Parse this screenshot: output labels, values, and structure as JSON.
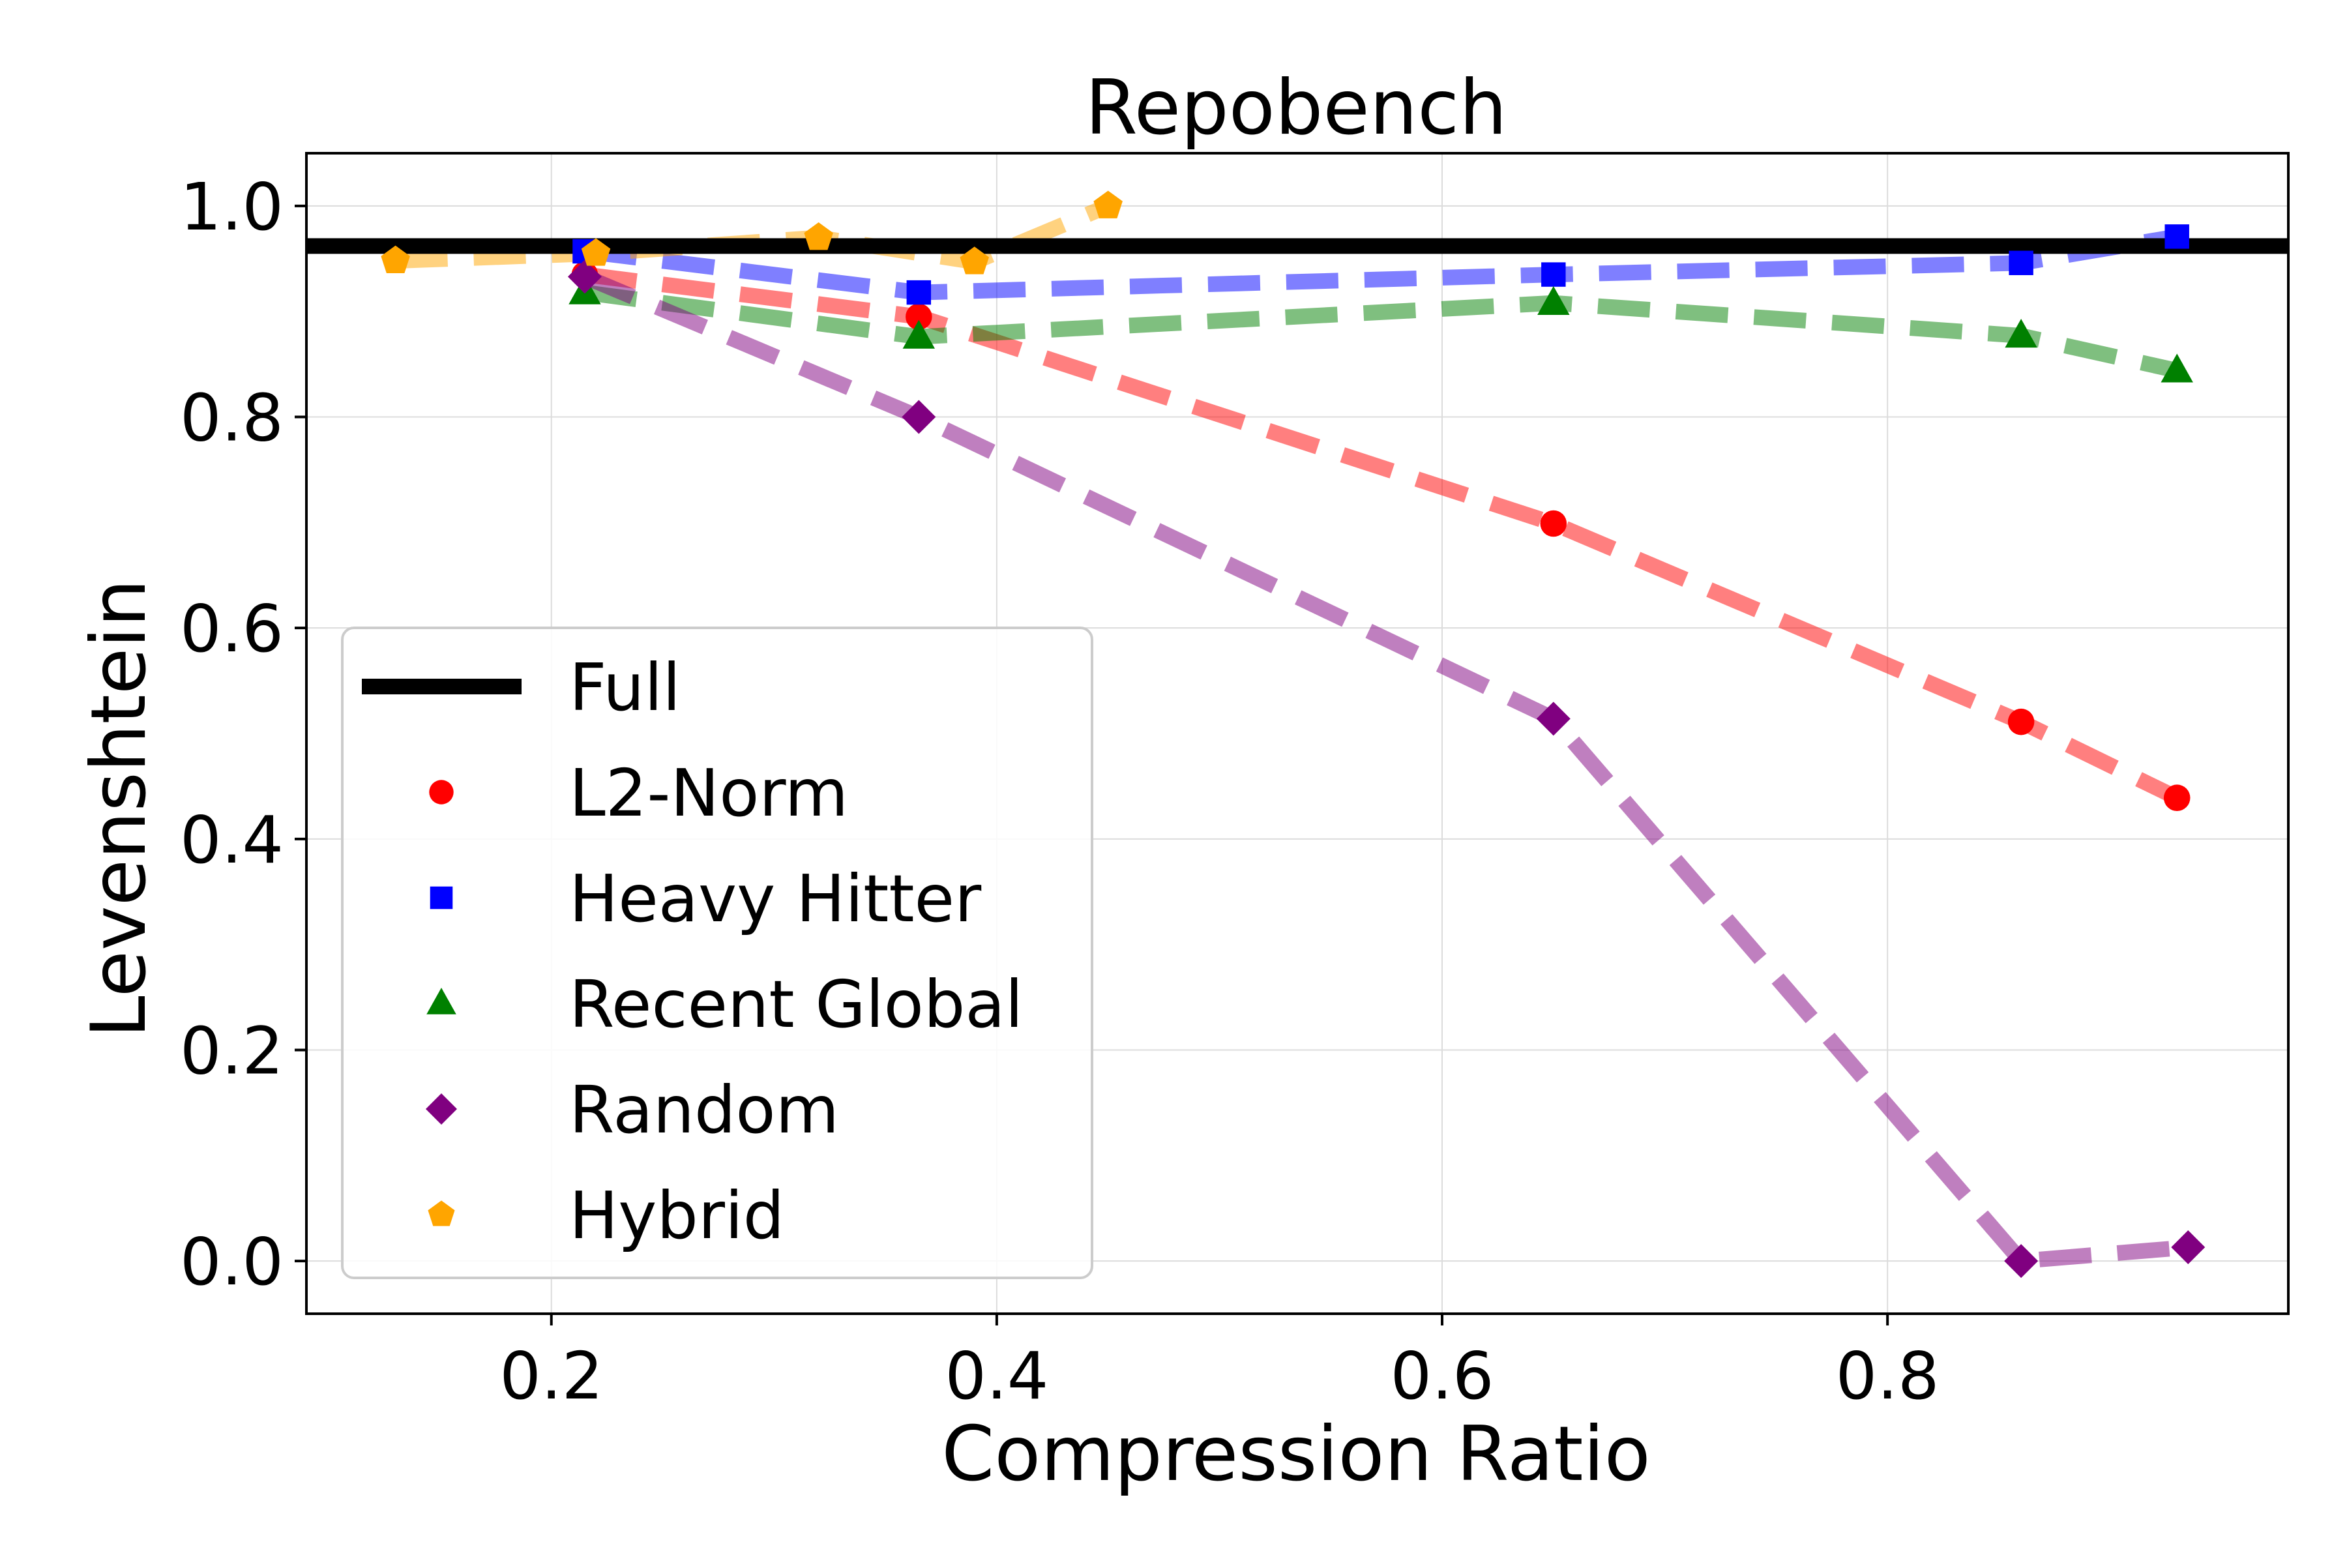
{
  "chart_data": {
    "type": "line",
    "title": "Repobench",
    "xlabel": "Compression Ratio",
    "ylabel": "Levenshtein",
    "xlim": [
      0.09,
      0.98
    ],
    "ylim": [
      -0.05,
      1.05
    ],
    "xticks": [
      0.2,
      0.4,
      0.6,
      0.8
    ],
    "xtick_labels": [
      "0.2",
      "0.4",
      "0.6",
      "0.8"
    ],
    "yticks": [
      0.0,
      0.2,
      0.4,
      0.6,
      0.8,
      1.0
    ],
    "ytick_labels": [
      "0.0",
      "0.2",
      "0.4",
      "0.6",
      "0.8",
      "1.0"
    ],
    "grid": true,
    "legend_position": "lower-left",
    "reference_lines": [
      {
        "name": "Full",
        "y": 0.962,
        "color": "#000000"
      }
    ],
    "series": [
      {
        "name": "L2-Norm",
        "color": "#ff0000",
        "marker": "circle",
        "x": [
          0.215,
          0.365,
          0.65,
          0.86,
          0.93
        ],
        "y": [
          0.935,
          0.895,
          0.699,
          0.511,
          0.439
        ]
      },
      {
        "name": "Heavy Hitter",
        "color": "#0000ff",
        "marker": "square",
        "x": [
          0.215,
          0.365,
          0.65,
          0.86,
          0.93
        ],
        "y": [
          0.957,
          0.918,
          0.935,
          0.946,
          0.971
        ]
      },
      {
        "name": "Recent Global",
        "color": "#008000",
        "marker": "triangle",
        "x": [
          0.215,
          0.365,
          0.65,
          0.86,
          0.93
        ],
        "y": [
          0.918,
          0.876,
          0.908,
          0.877,
          0.844
        ]
      },
      {
        "name": "Random",
        "color": "#800080",
        "marker": "diamond",
        "x": [
          0.215,
          0.365,
          0.65,
          0.86,
          0.935
        ],
        "y": [
          0.933,
          0.8,
          0.514,
          0.0,
          0.013
        ]
      },
      {
        "name": "Hybrid",
        "color": "#ffa500",
        "marker": "pentagon",
        "x": [
          0.13,
          0.22,
          0.32,
          0.39,
          0.45
        ],
        "y": [
          0.948,
          0.955,
          0.97,
          0.947,
          1.0
        ]
      }
    ]
  }
}
